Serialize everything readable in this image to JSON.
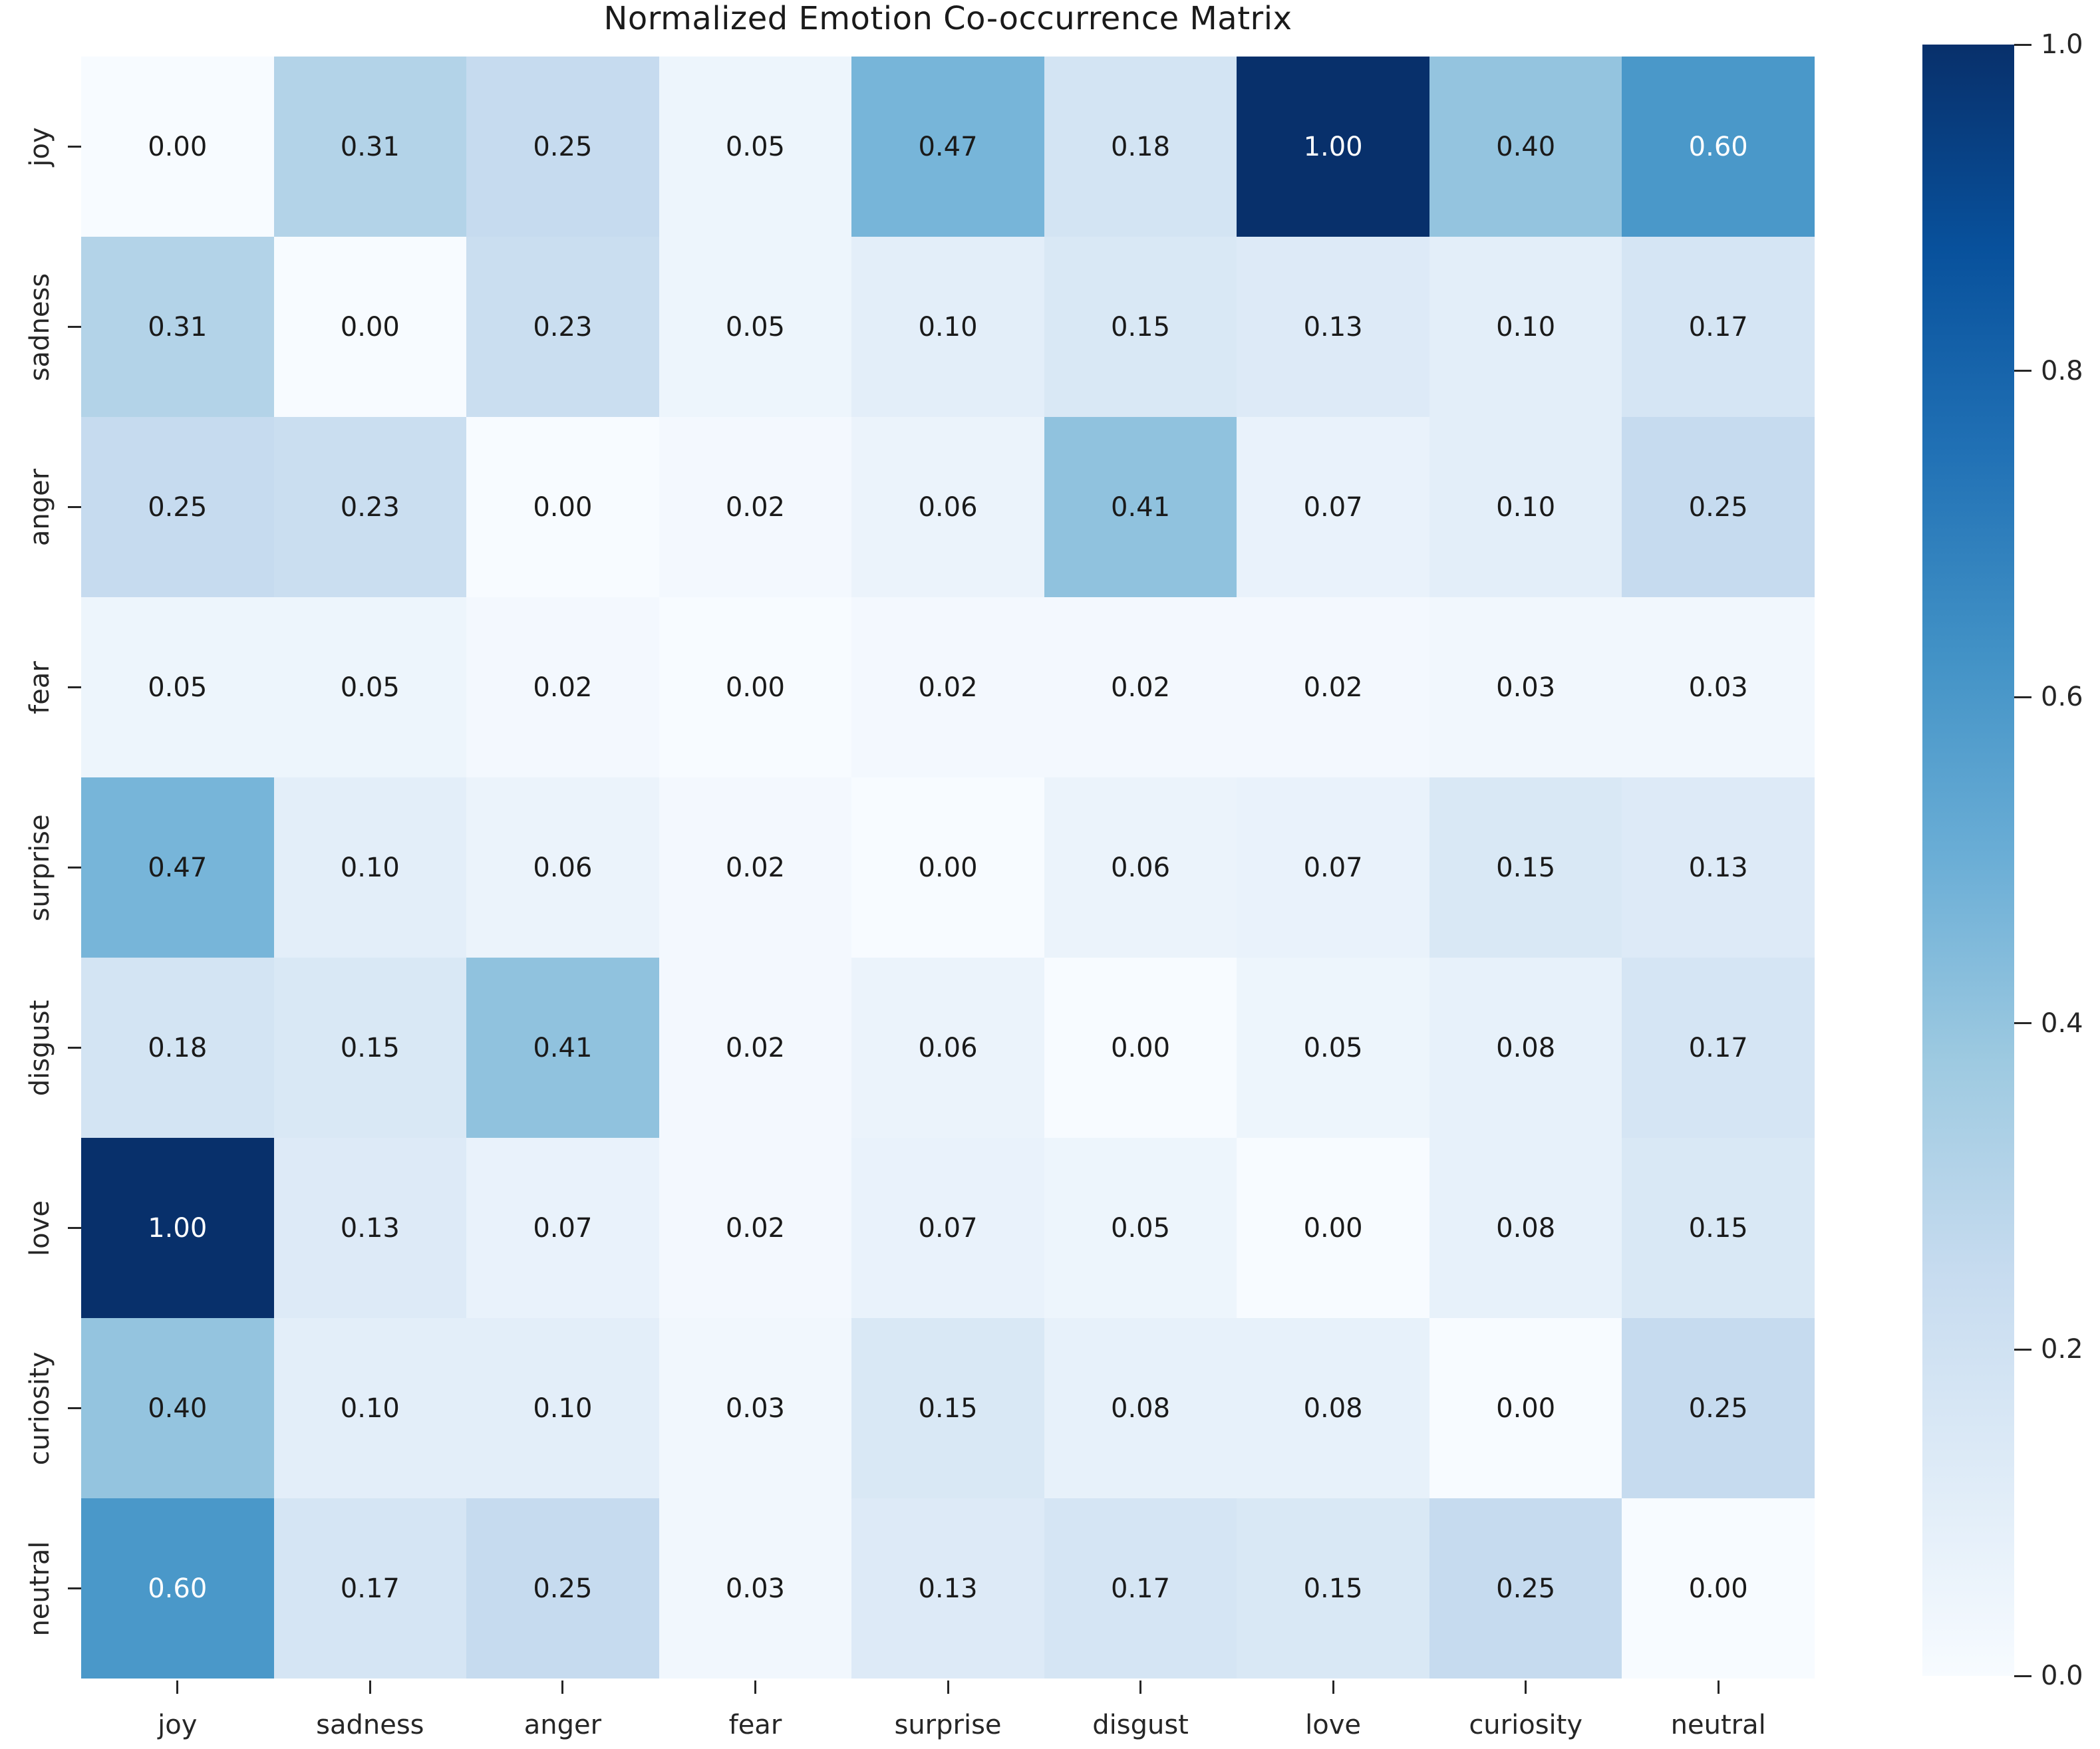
{
  "chart_data": {
    "type": "heatmap",
    "title": "Normalized Emotion Co-occurrence Matrix",
    "categories": [
      "joy",
      "sadness",
      "anger",
      "fear",
      "surprise",
      "disgust",
      "love",
      "curiosity",
      "neutral"
    ],
    "matrix": [
      [
        0.0,
        0.31,
        0.25,
        0.05,
        0.47,
        0.18,
        1.0,
        0.4,
        0.6
      ],
      [
        0.31,
        0.0,
        0.23,
        0.05,
        0.1,
        0.15,
        0.13,
        0.1,
        0.17
      ],
      [
        0.25,
        0.23,
        0.0,
        0.02,
        0.06,
        0.41,
        0.07,
        0.1,
        0.25
      ],
      [
        0.05,
        0.05,
        0.02,
        0.0,
        0.02,
        0.02,
        0.02,
        0.03,
        0.03
      ],
      [
        0.47,
        0.1,
        0.06,
        0.02,
        0.0,
        0.06,
        0.07,
        0.15,
        0.13
      ],
      [
        0.18,
        0.15,
        0.41,
        0.02,
        0.06,
        0.0,
        0.05,
        0.08,
        0.17
      ],
      [
        1.0,
        0.13,
        0.07,
        0.02,
        0.07,
        0.05,
        0.0,
        0.08,
        0.15
      ],
      [
        0.4,
        0.1,
        0.1,
        0.03,
        0.15,
        0.08,
        0.08,
        0.0,
        0.25
      ],
      [
        0.6,
        0.17,
        0.25,
        0.03,
        0.13,
        0.17,
        0.15,
        0.25,
        0.0
      ]
    ],
    "value_decimals": 2,
    "value_range": [
      0.0,
      1.0
    ],
    "legend_position": "right-colorbar",
    "grid": false,
    "colorbar": {
      "tick_labels": [
        "1.0",
        "0.8",
        "0.6",
        "0.4",
        "0.2",
        "0.0"
      ]
    },
    "colormap": {
      "name": "Blues",
      "anchors": [
        {
          "pos": 0.0,
          "color": "#f7fbff"
        },
        {
          "pos": 0.125,
          "color": "#deebf7"
        },
        {
          "pos": 0.25,
          "color": "#c6dbef"
        },
        {
          "pos": 0.375,
          "color": "#9ecae1"
        },
        {
          "pos": 0.5,
          "color": "#6baed6"
        },
        {
          "pos": 0.625,
          "color": "#4292c6"
        },
        {
          "pos": 0.75,
          "color": "#2171b5"
        },
        {
          "pos": 0.875,
          "color": "#08519c"
        },
        {
          "pos": 1.0,
          "color": "#08306b"
        }
      ]
    },
    "colors": {
      "annotation_dark": "#1a1a1a",
      "annotation_light": "#ffffff",
      "tick_label": "#262626",
      "title": "#1a1a1a",
      "background": "#ffffff"
    }
  }
}
